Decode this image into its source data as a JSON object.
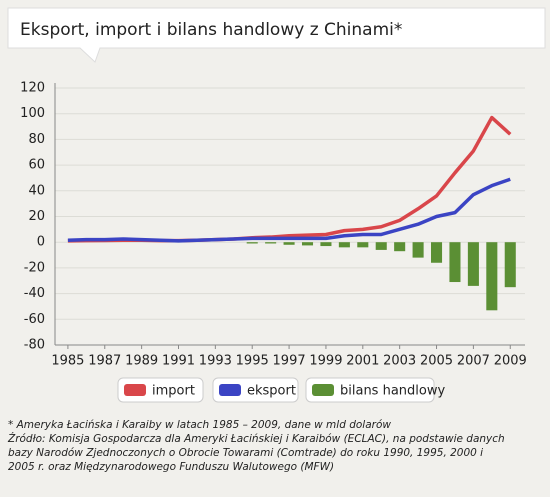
{
  "chart_data": {
    "type": "line",
    "title": "Eksport, import i bilans handlowy z Chinami*",
    "x": [
      1985,
      1986,
      1987,
      1988,
      1989,
      1990,
      1991,
      1992,
      1993,
      1994,
      1995,
      1996,
      1997,
      1998,
      1999,
      2000,
      2001,
      2002,
      2003,
      2004,
      2005,
      2006,
      2007,
      2008,
      2009
    ],
    "series": [
      {
        "name": "import",
        "color": "#d9464a",
        "type": "line",
        "values": [
          1,
          1.2,
          1.3,
          1.5,
          1.5,
          1.2,
          1.2,
          1.5,
          2,
          2.5,
          3.5,
          4,
          5,
          5.5,
          6,
          9,
          10,
          12,
          17,
          26,
          36,
          54,
          71,
          97,
          84
        ]
      },
      {
        "name": "eksport",
        "color": "#3b44c4",
        "type": "line",
        "values": [
          1.5,
          2,
          2,
          2.5,
          2,
          1.5,
          1,
          1.5,
          2,
          2.5,
          3,
          3,
          3,
          3,
          3,
          5,
          6,
          6,
          10,
          14,
          20,
          23,
          37,
          44,
          49
        ]
      },
      {
        "name": "bilans handlowy",
        "color": "#5b8f34",
        "type": "bar",
        "values": [
          0,
          0,
          0,
          0,
          0,
          0,
          0,
          0,
          0,
          0,
          -1,
          -1,
          -2,
          -2.5,
          -3,
          -4,
          -4,
          -6,
          -7,
          -12,
          -16,
          -31,
          -34,
          -53,
          -35
        ]
      }
    ],
    "xlim": [
      1984.3,
      2009.8
    ],
    "xticks": [
      1985,
      1987,
      1989,
      1991,
      1993,
      1995,
      1997,
      1999,
      2001,
      2003,
      2005,
      2007,
      2009
    ],
    "ylim": [
      -80,
      120
    ],
    "yticks": [
      -80,
      -60,
      -40,
      -20,
      0,
      20,
      40,
      60,
      80,
      100,
      120
    ],
    "grid": true,
    "notes": [
      "* Ameryka Łacińska i Karaiby w latach 1985 – 2009, dane w mld dolarów",
      "Źródło: Komisja Gospodarcza dla Ameryki Łacińskiej i Karaibów (ECLAC), na podstawie danych",
      "bazy Narodów Zjednoczonych o Obrocie Towarami (Comtrade) do roku 1990, 1995, 2000 i",
      "2005 r. oraz Międzynarodowego Funduszu Walutowego (MFW)"
    ]
  }
}
